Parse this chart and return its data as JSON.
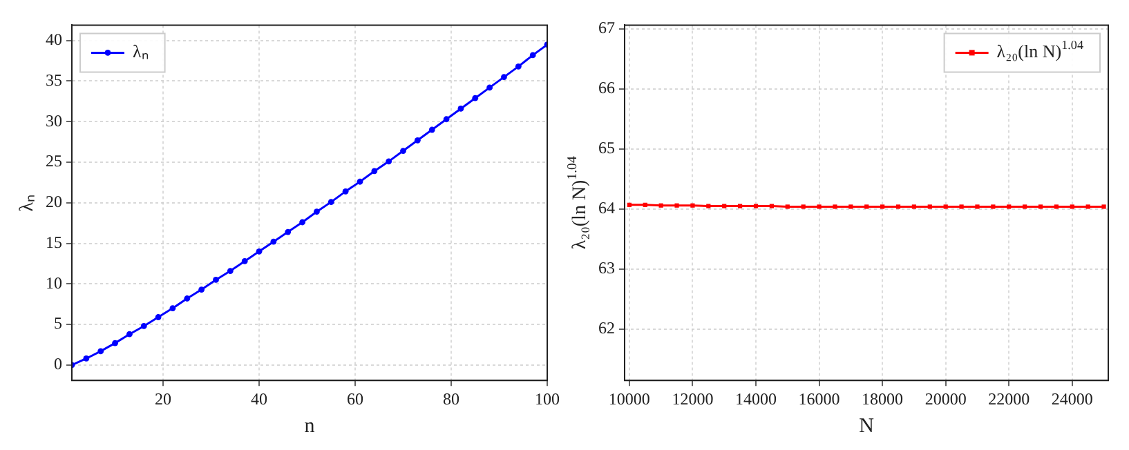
{
  "chart_data": [
    {
      "type": "line",
      "xlabel": "n",
      "ylabel": "λₙ",
      "x": [
        1,
        4,
        7,
        10,
        13,
        16,
        19,
        22,
        25,
        28,
        31,
        34,
        37,
        40,
        43,
        46,
        49,
        52,
        55,
        58,
        61,
        64,
        67,
        70,
        73,
        76,
        79,
        82,
        85,
        88,
        91,
        94,
        97,
        100
      ],
      "series": [
        {
          "name": "λₙ",
          "color": "#0000ff",
          "values": [
            0,
            0.8,
            1.7,
            2.7,
            3.8,
            4.8,
            5.9,
            7.0,
            8.2,
            9.3,
            10.5,
            11.6,
            12.8,
            14.0,
            15.2,
            16.4,
            17.6,
            18.9,
            20.1,
            21.4,
            22.6,
            23.9,
            25.1,
            26.4,
            27.7,
            29.0,
            30.3,
            31.6,
            32.9,
            34.2,
            35.5,
            36.8,
            38.2,
            39.5
          ]
        }
      ],
      "xlim": [
        1,
        100
      ],
      "xticks": [
        20,
        40,
        60,
        80,
        100
      ],
      "ylim": [
        -1.9,
        41.9
      ],
      "yticks": [
        0,
        5,
        10,
        15,
        20,
        25,
        30,
        35,
        40
      ],
      "grid": true,
      "legend": "top left",
      "marker": "circle",
      "line_style": "solid"
    },
    {
      "type": "line",
      "xlabel": "N",
      "ylabel": "λ₂₀(ln N)$^{1.04}$",
      "x": [
        10000,
        10500,
        11000,
        11500,
        12000,
        12500,
        13000,
        13500,
        14000,
        14500,
        15000,
        15500,
        16000,
        16500,
        17000,
        17500,
        18000,
        18500,
        19000,
        19500,
        20000,
        20500,
        21000,
        21500,
        22000,
        22500,
        23000,
        23500,
        24000,
        24500,
        25000
      ],
      "series": [
        {
          "name": "λ₂₀(ln N)$^{1.04}$",
          "color": "#ff0000",
          "values": [
            64.07,
            64.07,
            64.06,
            64.06,
            64.06,
            64.05,
            64.05,
            64.05,
            64.05,
            64.05,
            64.04,
            64.04,
            64.04,
            64.04,
            64.04,
            64.04,
            64.04,
            64.04,
            64.04,
            64.04,
            64.04,
            64.04,
            64.04,
            64.04,
            64.04,
            64.04,
            64.04,
            64.04,
            64.04,
            64.04,
            64.04
          ]
        }
      ],
      "xlim": [
        9850,
        25140
      ],
      "xticks": [
        10000,
        12000,
        14000,
        16000,
        18000,
        20000,
        22000,
        24000
      ],
      "ylim": [
        61.15,
        67.06
      ],
      "yticks": [
        62,
        63,
        64,
        65,
        66,
        67
      ],
      "grid": true,
      "legend": "top right",
      "marker": "square",
      "line_style": "solid"
    }
  ]
}
